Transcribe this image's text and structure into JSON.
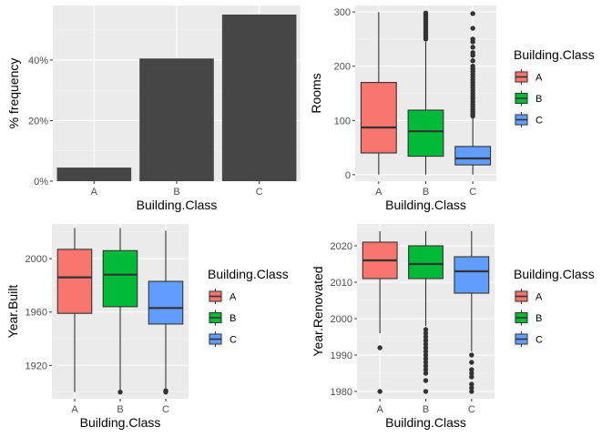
{
  "chart_data": [
    {
      "type": "bar",
      "categories": [
        "A",
        "B",
        "C"
      ],
      "values": [
        4.5,
        40.5,
        55
      ],
      "xlabel": "Building.Class",
      "ylabel": "% frequency",
      "ylim": [
        0,
        58
      ],
      "yticks": [
        0,
        20,
        40
      ],
      "ytick_labels": [
        "0%",
        "20%",
        "40%"
      ],
      "bar_color": "#464646",
      "grid": true
    },
    {
      "type": "box",
      "categories": [
        "A",
        "B",
        "C"
      ],
      "xlabel": "Building.Class",
      "ylabel": "Rooms",
      "ylim": [
        -12,
        312
      ],
      "yticks": [
        0,
        100,
        200,
        300
      ],
      "ytick_labels": [
        "0",
        "100",
        "200",
        "300"
      ],
      "boxes": [
        {
          "category": "A",
          "whisker_low": 0,
          "q1": 40,
          "median": 87,
          "q3": 170,
          "whisker_high": 300,
          "outliers": []
        },
        {
          "category": "B",
          "whisker_low": 0,
          "q1": 34,
          "median": 80,
          "q3": 119,
          "whisker_high": 245,
          "outliers": [
            250,
            254,
            258,
            262,
            266,
            270,
            274,
            278,
            282,
            286,
            290,
            294,
            298
          ]
        },
        {
          "category": "C",
          "whisker_low": 0,
          "q1": 18,
          "median": 30,
          "q3": 52,
          "whisker_high": 104,
          "outliers": [
            108,
            112,
            116,
            120,
            125,
            130,
            135,
            140,
            145,
            150,
            155,
            160,
            165,
            170,
            175,
            180,
            185,
            190,
            195,
            200,
            210,
            220,
            225,
            235,
            245,
            250,
            270,
            297
          ]
        }
      ],
      "legend": {
        "title": "Building.Class",
        "entries": [
          "A",
          "B",
          "C"
        ],
        "placement": "right"
      },
      "colors": [
        "#F8766D",
        "#00BA38",
        "#619CFF"
      ]
    },
    {
      "type": "box",
      "categories": [
        "A",
        "B",
        "C"
      ],
      "xlabel": "Building.Class",
      "ylabel": "Year.Built",
      "ylim": [
        1895,
        2026
      ],
      "yticks": [
        1920,
        1960,
        2000
      ],
      "ytick_labels": [
        "1920",
        "1960",
        "2000"
      ],
      "boxes": [
        {
          "category": "A",
          "whisker_low": 1900,
          "q1": 1959,
          "median": 1986,
          "q3": 2007,
          "whisker_high": 2023,
          "outliers": []
        },
        {
          "category": "B",
          "whisker_low": 1901,
          "q1": 1964,
          "median": 1988,
          "q3": 2006,
          "whisker_high": 2023,
          "outliers": [
            1900
          ]
        },
        {
          "category": "C",
          "whisker_low": 1902,
          "q1": 1951,
          "median": 1963,
          "q3": 1983,
          "whisker_high": 2021,
          "outliers": [
            1900,
            1901
          ]
        }
      ],
      "legend": {
        "title": "Building.Class",
        "entries": [
          "A",
          "B",
          "C"
        ],
        "placement": "right"
      },
      "colors": [
        "#F8766D",
        "#00BA38",
        "#619CFF"
      ]
    },
    {
      "type": "box",
      "categories": [
        "A",
        "B",
        "C"
      ],
      "xlabel": "Building.Class",
      "ylabel": "Year.Renovated",
      "ylim": [
        1978,
        2026
      ],
      "yticks": [
        1980,
        1990,
        2000,
        2010,
        2020
      ],
      "ytick_labels": [
        "1980",
        "1990",
        "2000",
        "2010",
        "2020"
      ],
      "boxes": [
        {
          "category": "A",
          "whisker_low": 1996,
          "q1": 2011,
          "median": 2016,
          "q3": 2021,
          "whisker_high": 2024,
          "outliers": [
            1992,
            1980
          ]
        },
        {
          "category": "B",
          "whisker_low": 1998,
          "q1": 2011,
          "median": 2015,
          "q3": 2020,
          "whisker_high": 2024,
          "outliers": [
            1997,
            1996,
            1995,
            1994,
            1993,
            1992,
            1991,
            1990,
            1989,
            1988,
            1987,
            1986,
            1985,
            1983,
            1980
          ]
        },
        {
          "category": "C",
          "whisker_low": 1991,
          "q1": 2007,
          "median": 2013,
          "q3": 2017,
          "whisker_high": 2024,
          "outliers": [
            1990,
            1988,
            1986,
            1985,
            1984,
            1982,
            1981,
            1980
          ]
        }
      ],
      "legend": {
        "title": "Building.Class",
        "entries": [
          "A",
          "B",
          "C"
        ],
        "placement": "right"
      },
      "colors": [
        "#F8766D",
        "#00BA38",
        "#619CFF"
      ]
    }
  ]
}
